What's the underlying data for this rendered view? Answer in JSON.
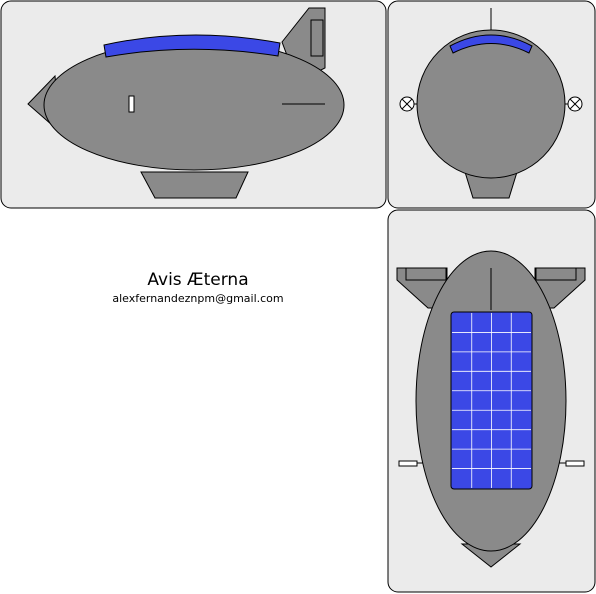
{
  "title": "Avis Æterna",
  "email": "alexfernandeznpm@gmail.com",
  "colors": {
    "panel_bg": "#ebebeb",
    "hull": "#8a8a8a",
    "solar_panel": "#3b48e6",
    "outline": "#000000",
    "grid": "#ffffff"
  },
  "views": [
    {
      "name": "side-view"
    },
    {
      "name": "front-view"
    },
    {
      "name": "top-view"
    }
  ]
}
